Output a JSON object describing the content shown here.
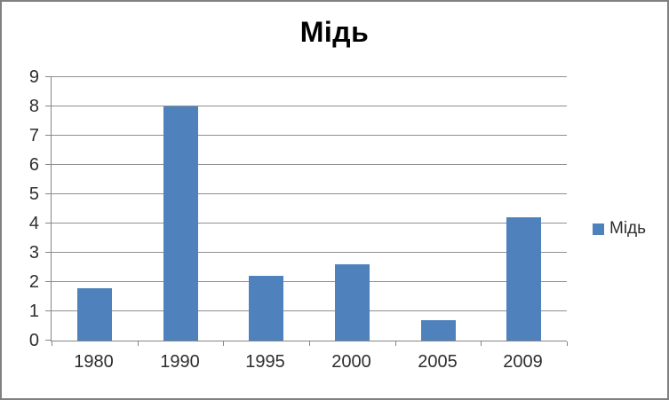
{
  "chart_data": {
    "type": "bar",
    "title": "Мідь",
    "categories": [
      "1980",
      "1990",
      "1995",
      "2000",
      "2005",
      "2009"
    ],
    "series": [
      {
        "name": "Мідь",
        "values": [
          1.8,
          8,
          2.2,
          2.6,
          0.7,
          4.2
        ]
      }
    ],
    "xlabel": "",
    "ylabel": "",
    "ylim": [
      0,
      9
    ],
    "ytick_step": 1,
    "grid": true,
    "legend_position": "right"
  },
  "colors": {
    "bar": "#4F81BD",
    "gridline": "#8F8F8F",
    "axis": "#868686",
    "text": "#2E2E2E",
    "title": "#000000",
    "frame_border": "#808080",
    "background": "#FFFFFF"
  }
}
